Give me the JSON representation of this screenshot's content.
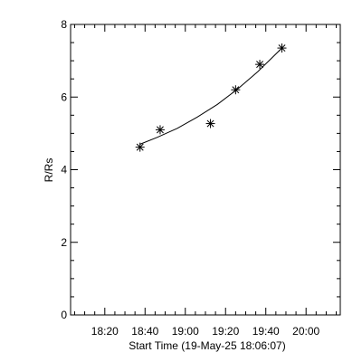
{
  "chart_data": {
    "type": "scatter",
    "xlabel": "Start Time (19-May-25 18:06:07)",
    "ylabel": "R/Rs",
    "x_ticks": [
      {
        "value": 14,
        "label": "18:20"
      },
      {
        "value": 34,
        "label": "18:40"
      },
      {
        "value": 54,
        "label": "19:00"
      },
      {
        "value": 74,
        "label": "19:20"
      },
      {
        "value": 94,
        "label": "19:40"
      },
      {
        "value": 114,
        "label": "20:00"
      }
    ],
    "y_ticks": [
      {
        "value": 0,
        "label": "0"
      },
      {
        "value": 2,
        "label": "2"
      },
      {
        "value": 4,
        "label": "4"
      },
      {
        "value": 6,
        "label": "6"
      },
      {
        "value": 8,
        "label": "8"
      }
    ],
    "xlim": [
      -3,
      131
    ],
    "ylim": [
      0,
      8
    ],
    "grid": false,
    "points": [
      {
        "x": 31.5,
        "y": 4.62
      },
      {
        "x": 41.5,
        "y": 5.1
      },
      {
        "x": 66.5,
        "y": 5.27
      },
      {
        "x": 79.0,
        "y": 6.2
      },
      {
        "x": 91.0,
        "y": 6.9
      },
      {
        "x": 102.0,
        "y": 7.35
      }
    ],
    "fit_curve": [
      {
        "x": 31.5,
        "y": 4.7
      },
      {
        "x": 40,
        "y": 4.89
      },
      {
        "x": 50,
        "y": 5.14
      },
      {
        "x": 60,
        "y": 5.45
      },
      {
        "x": 70,
        "y": 5.8
      },
      {
        "x": 80,
        "y": 6.22
      },
      {
        "x": 90,
        "y": 6.7
      },
      {
        "x": 102.0,
        "y": 7.35
      }
    ],
    "marker": "asterisk",
    "color": "#000000"
  }
}
